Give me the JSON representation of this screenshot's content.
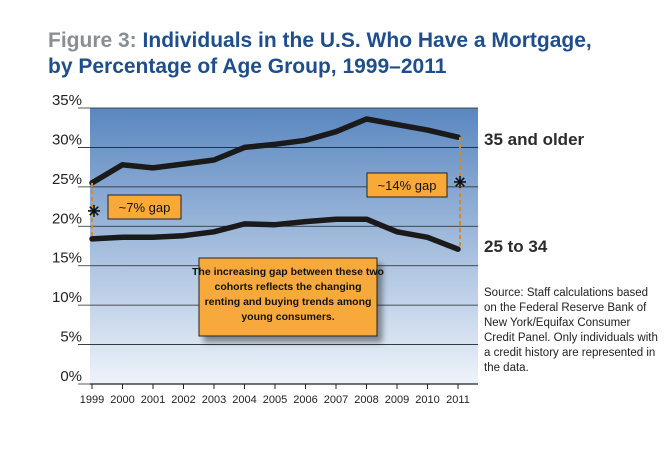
{
  "title": {
    "prefix": "Figure 3:",
    "line1": "Individuals in the U.S. Who Have a Mortgage,",
    "line2": "by Percentage of Age Group, 1999–2011"
  },
  "colors": {
    "title": "#1f4e8c",
    "title_prefix": "#8a8f94",
    "plot_top": "#5a87c0",
    "plot_bottom": "#eef3fa",
    "line": "#1a1a1a",
    "callout_fill": "#f8a93a",
    "gap_marker": "#d98a1e"
  },
  "chart_data": {
    "type": "line",
    "x": [
      1999,
      2000,
      2001,
      2002,
      2003,
      2004,
      2005,
      2006,
      2007,
      2008,
      2009,
      2010,
      2011
    ],
    "y_ticks": [
      "0%",
      "5%",
      "10%",
      "15%",
      "20%",
      "25%",
      "30%",
      "35%"
    ],
    "ylim": [
      0,
      35
    ],
    "grid": true,
    "series": [
      {
        "name": "35 and older",
        "values": [
          25.5,
          27.8,
          27.4,
          27.9,
          28.4,
          30.0,
          30.4,
          30.9,
          32.0,
          33.6,
          32.9,
          32.2,
          31.3
        ]
      },
      {
        "name": "25 to 34",
        "values": [
          18.4,
          18.6,
          18.6,
          18.8,
          19.3,
          20.3,
          20.2,
          20.6,
          20.9,
          20.9,
          19.3,
          18.6,
          17.1
        ]
      }
    ],
    "annotations": {
      "gap_1999": "~7% gap",
      "gap_2011": "~14% gap",
      "note": "The increasing gap between these two cohorts reflects the changing renting and buying trends among young consumers."
    }
  },
  "source": "Source: Staff calculations based on the Federal Reserve Bank of New York/Equifax Consumer Credit Panel. Only individuals with a credit history are represented in the data."
}
